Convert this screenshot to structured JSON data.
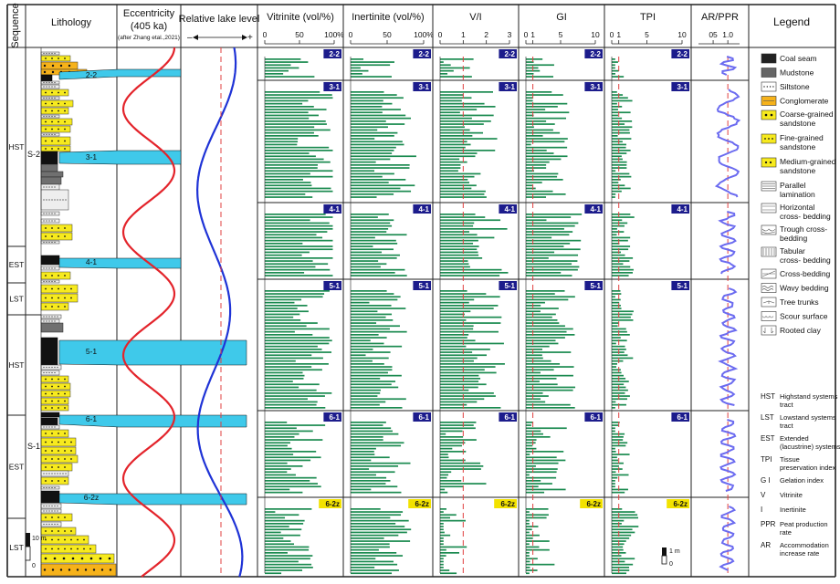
{
  "headers": {
    "sequence": "Sequence",
    "lithology": "Lithology",
    "eccentricity": "Eccentricity",
    "eccentricity_period": "(405 ka)",
    "eccentricity_source": "(after Zhang etal.,2021)",
    "lake_level": "Relative lake level",
    "lake_minus": "–",
    "lake_plus": "+",
    "vitrinite": "Vitrinite (vol/%)",
    "inertinite": "Inertinite (vol/%)",
    "vi": "V/I",
    "gi": "GI",
    "tpi": "TPI",
    "ar_ppr": "AR/PPR",
    "legend": "Legend"
  },
  "axis_ticks": {
    "vitrinite": [
      "0",
      "50",
      "100%"
    ],
    "inertinite": [
      "0",
      "50",
      "100%"
    ],
    "vi": [
      "0",
      "1",
      "2",
      "3"
    ],
    "gi": [
      "0",
      "1",
      "5",
      "10"
    ],
    "tpi": [
      "0",
      "1",
      "5",
      "10"
    ],
    "ar_ppr": [
      "05",
      "1.0"
    ]
  },
  "systems_tracts": [
    "HST",
    "EST",
    "LST",
    "HST",
    "EST",
    "LST"
  ],
  "sub_sequences": [
    "S-2",
    "S-1"
  ],
  "coal_seams": [
    "2-2",
    "3-1",
    "4-1",
    "5-1",
    "6-1",
    "6-2z"
  ],
  "scale_bar": {
    "lith_top": "10 m",
    "lith_bottom": "0",
    "tpi_top": "1 m",
    "tpi_bottom": "0"
  },
  "legend_items": [
    {
      "label": "Coal seam",
      "symbol": "coal"
    },
    {
      "label": "Mudstone",
      "symbol": "mud"
    },
    {
      "label": "Siltstone",
      "symbol": "silt"
    },
    {
      "label": "Conglomerate",
      "symbol": "cong"
    },
    {
      "label": "Coarse-grained sandstone",
      "symbol": "coarse"
    },
    {
      "label": "Fine-grained sandstone",
      "symbol": "fine"
    },
    {
      "label": "Medium-grained sandstone",
      "symbol": "medium"
    },
    {
      "label": "Parallel lamination",
      "symbol": "parallel"
    },
    {
      "label": "Horizontal cross- bedding",
      "symbol": "horizontal"
    },
    {
      "label": "Trough cross- bedding",
      "symbol": "trough"
    },
    {
      "label": "Tabular cross- bedding",
      "symbol": "tabular"
    },
    {
      "label": "Cross-bedding",
      "symbol": "cross"
    },
    {
      "label": "Wavy bedding",
      "symbol": "wavy"
    },
    {
      "label": "Tree trunks",
      "symbol": "tree"
    },
    {
      "label": "Scour surface",
      "symbol": "scour"
    },
    {
      "label": "Rooted clay",
      "symbol": "rooted"
    }
  ],
  "abbreviations": [
    {
      "abbr": "HST",
      "text": "Highstand systems tract"
    },
    {
      "abbr": "LST",
      "text": "Lowstand systems tract"
    },
    {
      "abbr": "EST",
      "text": "Extended (lacustrine) systems tract"
    },
    {
      "abbr": "TPI",
      "text": "Tissue preservation index"
    },
    {
      "abbr": "G I",
      "text": "Gelation index"
    },
    {
      "abbr": "V",
      "text": "Vitrinite"
    },
    {
      "abbr": "I",
      "text": "Inertinite"
    },
    {
      "abbr": "PPR",
      "text": "Peat production rate"
    },
    {
      "abbr": "AR",
      "text": "Accommodation increase rate"
    }
  ],
  "colors": {
    "bars": "#1a8a4f",
    "coal_label_bg": "#1c1c8c",
    "coal_label_yellow": "#f2e200",
    "ecc": "#e3242b",
    "lake": "#1f33d6",
    "ar": "#6b6bf0",
    "ref_line": "#e04040",
    "seam": "#3fc9ea",
    "sand": "#f7ea1e",
    "cong": "#f6b21a"
  }
}
